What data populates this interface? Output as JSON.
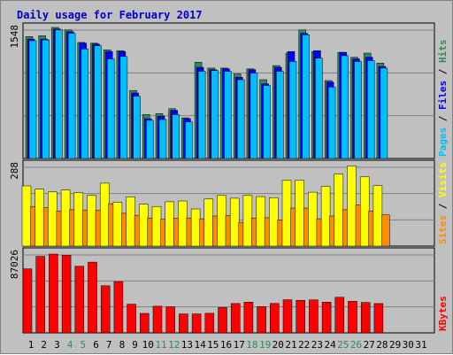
{
  "title": "Daily usage for February 2017",
  "colors": {
    "title": "#0000cc",
    "background": "#c0c0c0",
    "hits": "#2e8b57",
    "files": "#0000ff",
    "pages": "#00bfff",
    "visits": "#ffff00",
    "sites": "#ff8c00",
    "kbytes": "#ff0000",
    "weekend_day": "#2e8b57",
    "weekday": "#000000"
  },
  "chart_data": [
    {
      "type": "bar",
      "panel": "hits-files-pages",
      "ymax_label": "1548",
      "ylim": [
        0,
        1548
      ],
      "legend": [
        "Pages",
        "Files",
        "Hits"
      ],
      "categories": [
        "1",
        "2",
        "3",
        "4",
        "5",
        "6",
        "7",
        "8",
        "9",
        "10",
        "11",
        "12",
        "13",
        "14",
        "15",
        "16",
        "17",
        "18",
        "19",
        "20",
        "21",
        "22",
        "23",
        "24",
        "25",
        "26",
        "27",
        "28"
      ],
      "series": [
        {
          "name": "Hits",
          "values": [
            1470,
            1480,
            1580,
            1550,
            1400,
            1390,
            1310,
            1300,
            820,
            530,
            540,
            600,
            490,
            1160,
            1090,
            1090,
            1020,
            1080,
            950,
            1120,
            1270,
            1550,
            1290,
            940,
            1280,
            1220,
            1270,
            1150
          ]
        },
        {
          "name": "Files",
          "values": [
            1440,
            1440,
            1560,
            1530,
            1390,
            1380,
            1290,
            1290,
            790,
            480,
            510,
            580,
            480,
            1100,
            1070,
            1080,
            980,
            1070,
            900,
            1100,
            1290,
            1510,
            1300,
            920,
            1280,
            1200,
            1220,
            1110
          ]
        },
        {
          "name": "Pages",
          "values": [
            1420,
            1430,
            1550,
            1510,
            1320,
            1360,
            1200,
            1230,
            750,
            460,
            470,
            530,
            440,
            1050,
            1060,
            1050,
            950,
            1030,
            880,
            1050,
            1170,
            1490,
            1210,
            860,
            1240,
            1170,
            1180,
            1090
          ]
        }
      ]
    },
    {
      "type": "bar",
      "panel": "visits-sites",
      "ymax_label": "288",
      "ylim": [
        0,
        288
      ],
      "legend": [
        "Sites",
        "Visits"
      ],
      "categories": [
        "1",
        "2",
        "3",
        "4",
        "5",
        "6",
        "7",
        "8",
        "9",
        "10",
        "11",
        "12",
        "13",
        "14",
        "15",
        "16",
        "17",
        "18",
        "19",
        "20",
        "21",
        "22",
        "23",
        "24",
        "25",
        "26",
        "27",
        "28"
      ],
      "series": [
        {
          "name": "Visits",
          "values": [
            220,
            208,
            198,
            205,
            195,
            185,
            230,
            160,
            180,
            153,
            145,
            162,
            165,
            136,
            172,
            185,
            175,
            185,
            181,
            177,
            240,
            240,
            197,
            218,
            263,
            293,
            253,
            221
          ]
        },
        {
          "name": "Sites",
          "values": [
            145,
            140,
            128,
            133,
            132,
            130,
            155,
            120,
            113,
            103,
            98,
            102,
            103,
            100,
            110,
            111,
            87,
            103,
            104,
            96,
            139,
            139,
            100,
            110,
            133,
            150,
            128,
            114
          ]
        }
      ]
    },
    {
      "type": "bar",
      "panel": "kbytes",
      "ymax_label": "87026",
      "ylim": [
        0,
        87026
      ],
      "legend": [
        "KBytes"
      ],
      "categories": [
        "1",
        "2",
        "3",
        "4",
        "5",
        "6",
        "7",
        "8",
        "9",
        "10",
        "11",
        "12",
        "13",
        "14",
        "15",
        "16",
        "17",
        "18",
        "19",
        "20",
        "21",
        "22",
        "23",
        "24",
        "25",
        "26",
        "27",
        "28"
      ],
      "series": [
        {
          "name": "KBytes",
          "values": [
            71500,
            85400,
            88000,
            86600,
            74400,
            79000,
            52600,
            57300,
            32000,
            21800,
            29800,
            29100,
            21200,
            21200,
            21900,
            28300,
            32800,
            34300,
            29300,
            32800,
            37000,
            36400,
            36900,
            34300,
            39800,
            35300,
            34000,
            32700
          ]
        }
      ]
    }
  ],
  "x_axis_labels": [
    "1",
    "2",
    "3",
    "4",
    "5",
    "6",
    "7",
    "8",
    "9",
    "10",
    "11",
    "12",
    "13",
    "14",
    "15",
    "16",
    "17",
    "18",
    "19",
    "20",
    "21",
    "22",
    "23",
    "24",
    "25",
    "26",
    "27",
    "28",
    "29",
    "30",
    "31"
  ],
  "weekend_days": [
    "4",
    "5",
    "11",
    "12",
    "18",
    "19",
    "25",
    "26"
  ]
}
